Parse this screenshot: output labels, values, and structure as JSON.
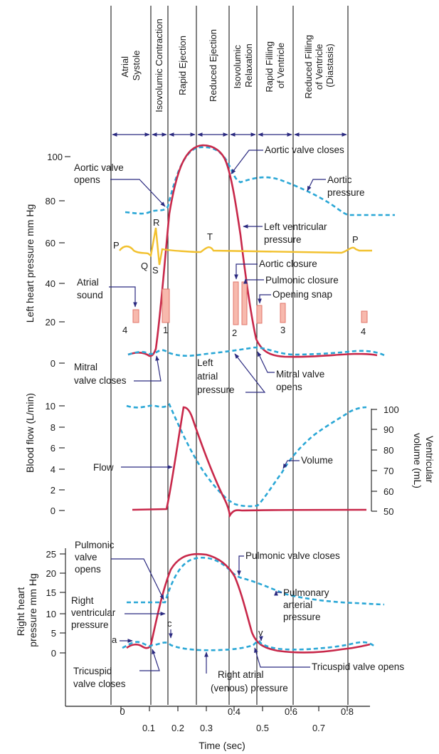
{
  "phases": [
    {
      "lines": [
        "Atrial",
        "Systole"
      ]
    },
    {
      "lines": [
        "Isovolumic Contraction"
      ]
    },
    {
      "lines": [
        "Rapid Ejection"
      ]
    },
    {
      "lines": [
        "Reduced Ejection"
      ]
    },
    {
      "lines": [
        "Isovolumic",
        "Relaxation"
      ]
    },
    {
      "lines": [
        "Rapid Filling",
        "of Ventricle"
      ]
    },
    {
      "lines": [
        "Reduced Filling",
        "of Ventricle",
        "(Diastasis)"
      ]
    }
  ],
  "left_panel": {
    "ylabel": "Left heart pressure mm Hg",
    "yticks": [
      "100",
      "80",
      "60",
      "40",
      "20",
      "0"
    ],
    "labels": {
      "aortic_valve_closes": "Aortic valve closes",
      "aortic_valve_opens_1": "Aortic valve",
      "aortic_valve_opens_2": "opens",
      "aortic_pressure_1": "Aortic",
      "aortic_pressure_2": "pressure",
      "lv_pressure_1": "Left ventricular",
      "lv_pressure_2": "pressure",
      "aortic_closure": "Aortic closure",
      "pulmonic_closure": "Pulmonic closure",
      "opening_snap": "Opening snap",
      "atrial_sound_1": "Atrial",
      "atrial_sound_2": "sound",
      "mitral_valve_closes_1": "Mitral",
      "mitral_valve_closes_2": "valve closes",
      "left_atrial_1": "Left",
      "left_atrial_2": "atrial",
      "left_atrial_3": "pressure",
      "mitral_valve_opens_1": "Mitral valve",
      "mitral_valve_opens_2": "opens"
    },
    "ecg_labels": [
      "P",
      "R",
      "Q",
      "S",
      "T",
      "P"
    ],
    "sound_numbers": [
      "4",
      "1",
      "2",
      "3",
      "4"
    ]
  },
  "flow_panel": {
    "ylabel": "Blood flow (L/min)",
    "yticks": [
      "10",
      "8",
      "6",
      "4",
      "2",
      "0"
    ],
    "ylabel_right": "Ventricular volume (mL)",
    "ylabel_right_1": "Ventricular",
    "ylabel_right_2": "volume (mL)",
    "yticks_right": [
      "100",
      "90",
      "80",
      "70",
      "60",
      "50"
    ],
    "labels": {
      "flow": "Flow",
      "volume": "Volume"
    }
  },
  "right_panel": {
    "ylabel_1": "Right heart",
    "ylabel_2": "pressure mm Hg",
    "yticks": [
      "25",
      "20",
      "15",
      "10",
      "5",
      "0"
    ],
    "labels": {
      "pulmonic_opens_1": "Pulmonic",
      "pulmonic_opens_2": "valve",
      "pulmonic_opens_3": "opens",
      "pulmonic_closes": "Pulmonic valve closes",
      "rv_pressure_1": "Right",
      "rv_pressure_2": "ventricular",
      "rv_pressure_3": "pressure",
      "pulm_arterial_1": "Pulmonary",
      "pulm_arterial_2": "arterial",
      "pulm_arterial_3": "pressure",
      "wave_a": "a",
      "wave_c": "c",
      "wave_v": "v",
      "tricuspid_closes_1": "Tricuspid",
      "tricuspid_closes_2": "valve closes",
      "tricuspid_opens": "Tricuspid valve opens",
      "right_atrial_1": "Right atrial",
      "right_atrial_2": "(venous) pressure"
    }
  },
  "xaxis": {
    "label": "Time (sec)",
    "ticks": [
      "0",
      "0.1",
      "0.2",
      "0.3",
      "0.4",
      "0.5",
      "0.6",
      "0.7",
      "0.8"
    ]
  },
  "colors": {
    "pressure_red": "#c8284a",
    "dashed_blue": "#2aa7d6",
    "ecg_yellow": "#f2c12e",
    "sound_fill": "#f7b9ad",
    "sound_stroke": "#e2756a",
    "arrow_navy": "#2b2a80",
    "line_black": "#1a1a1a"
  }
}
